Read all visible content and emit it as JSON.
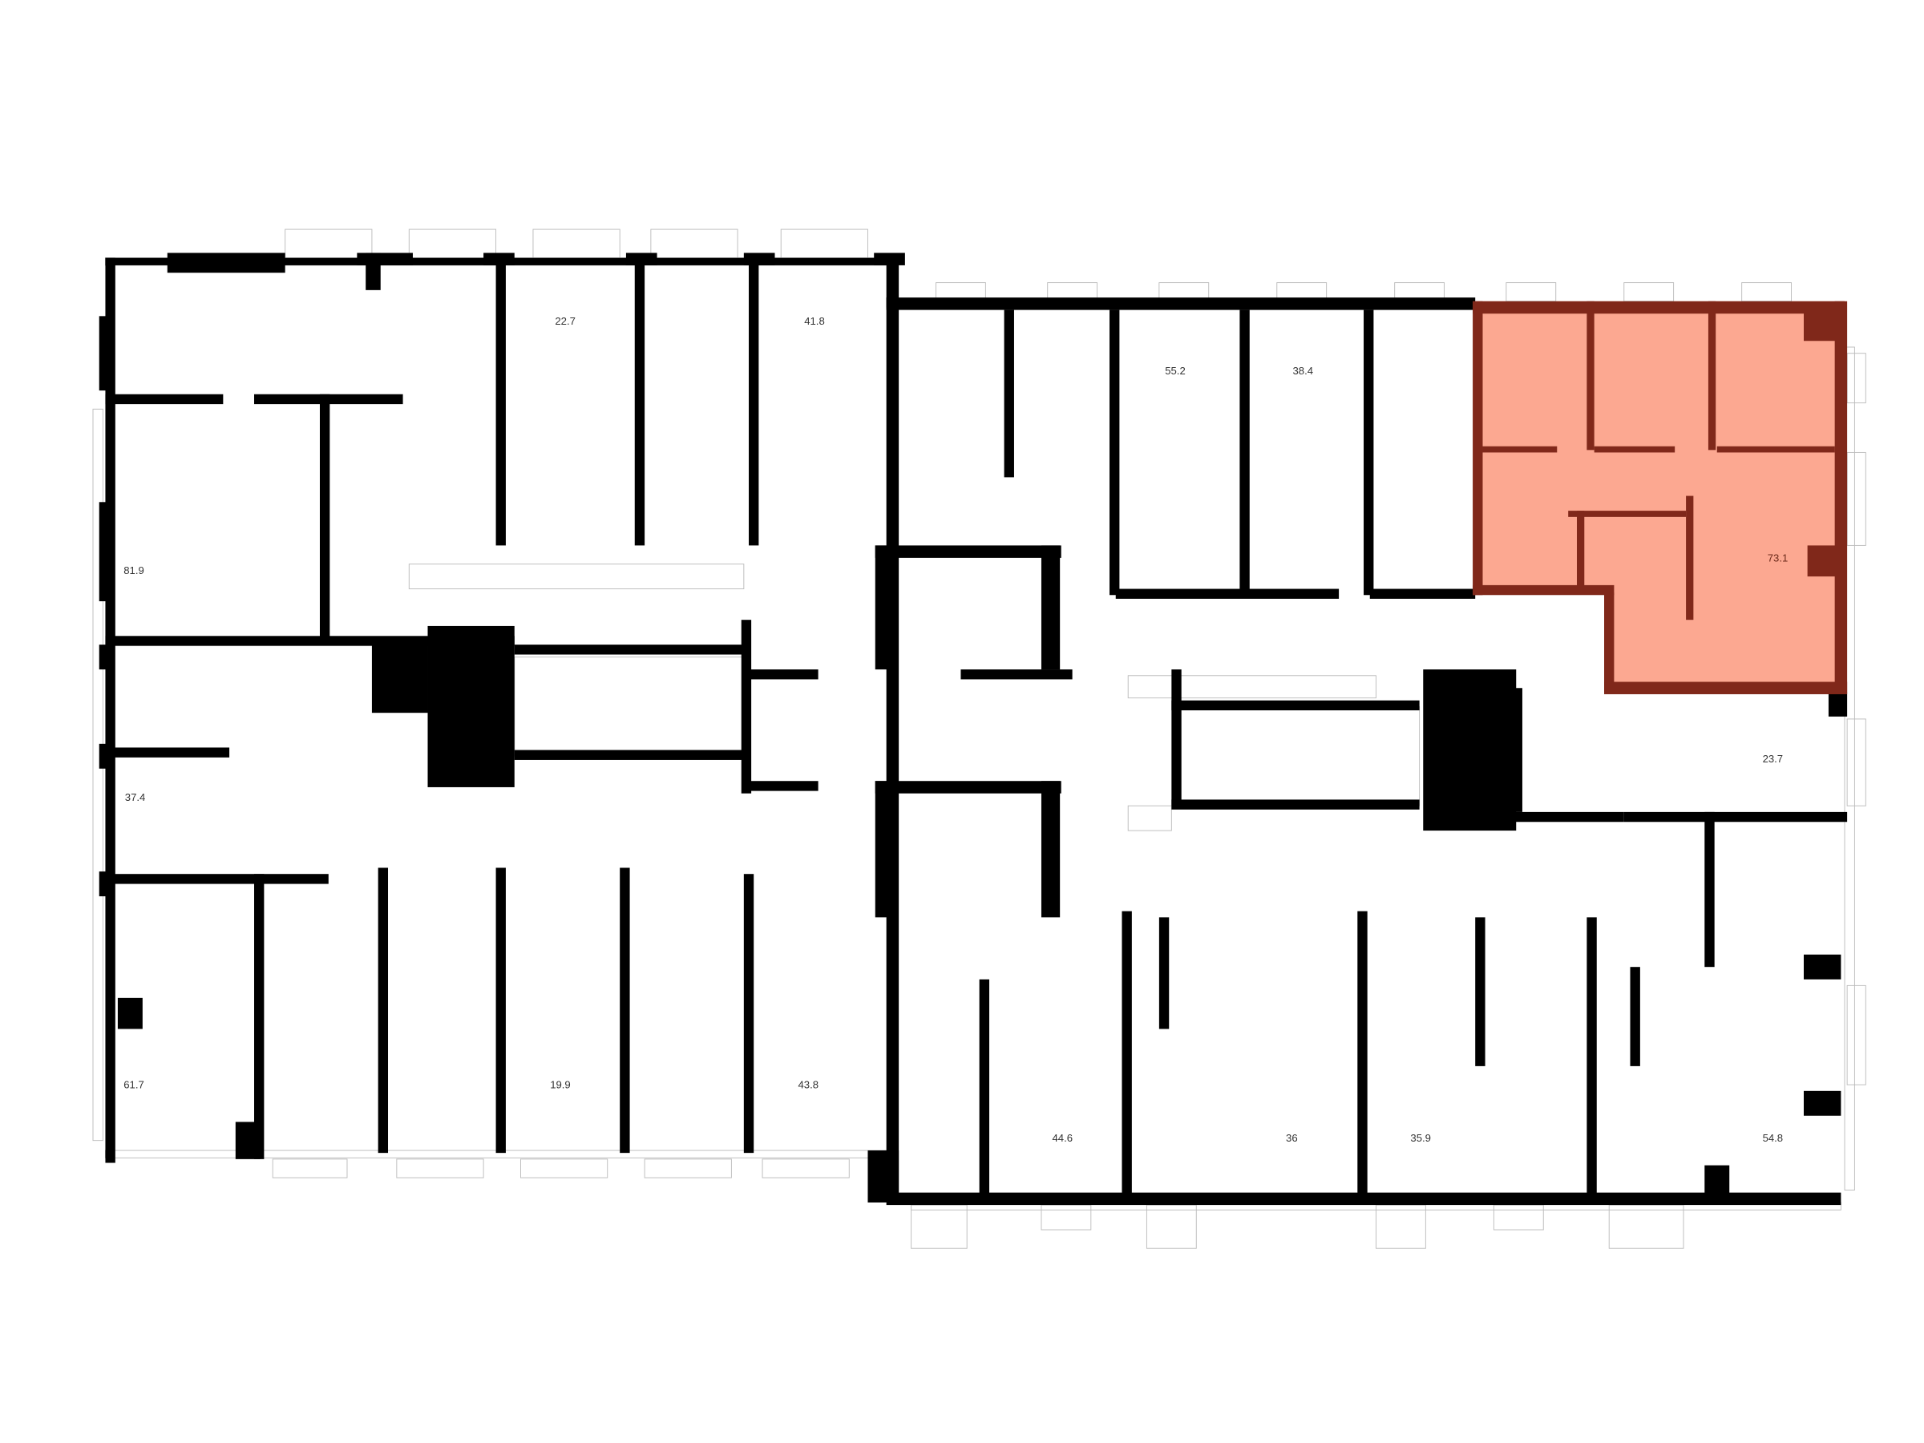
{
  "floor_plan": {
    "highlight_color": "#fca891",
    "highlight_wall_color": "#80281a",
    "wall_color": "#000000",
    "selected_apartment": "73.1",
    "apartments": [
      {
        "area": "81.9"
      },
      {
        "area": "22.7"
      },
      {
        "area": "41.8"
      },
      {
        "area": "55.2"
      },
      {
        "area": "38.4"
      },
      {
        "area": "73.1",
        "highlighted": true
      },
      {
        "area": "37.4"
      },
      {
        "area": "23.7"
      },
      {
        "area": "61.7"
      },
      {
        "area": "19.9"
      },
      {
        "area": "43.8"
      },
      {
        "area": "44.6"
      },
      {
        "area": "36"
      },
      {
        "area": "35.9"
      },
      {
        "area": "54.8"
      }
    ]
  }
}
